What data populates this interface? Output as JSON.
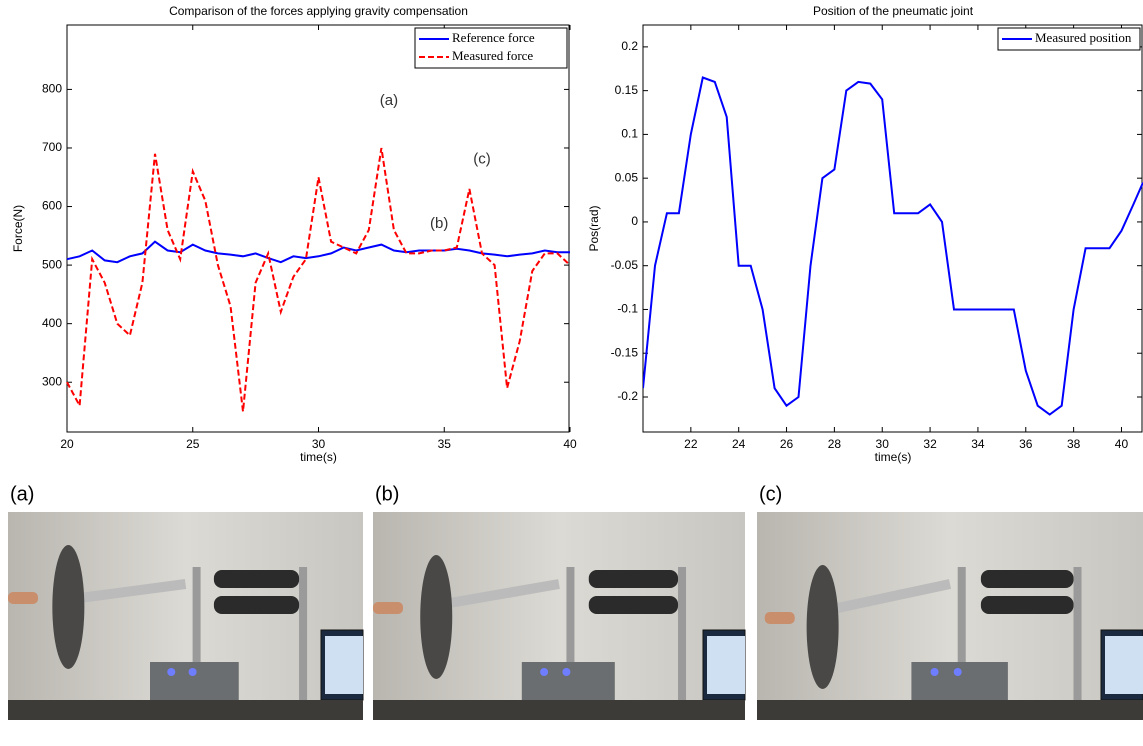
{
  "chart_data": [
    {
      "type": "line",
      "title": "Comparison of the forces applying gravity compensation",
      "xlabel": "time(s)",
      "ylabel": "Force(N)",
      "x": [
        20,
        20.5,
        21,
        21.5,
        22,
        22.5,
        23,
        23.5,
        24,
        24.5,
        25,
        25.5,
        26,
        26.5,
        27,
        27.5,
        28,
        28.5,
        29,
        29.5,
        30,
        30.5,
        31,
        31.5,
        32,
        32.5,
        33,
        33.5,
        34,
        34.5,
        35,
        35.5,
        36,
        36.5,
        37,
        37.5,
        38,
        38.5,
        39,
        39.5,
        40
      ],
      "series": [
        {
          "name": "Reference force",
          "color": "#0000ff",
          "linestyle": "solid",
          "values": [
            510,
            515,
            525,
            508,
            505,
            515,
            520,
            540,
            525,
            522,
            535,
            525,
            520,
            518,
            515,
            520,
            512,
            505,
            515,
            512,
            515,
            520,
            530,
            525,
            530,
            535,
            525,
            522,
            525,
            525,
            525,
            528,
            525,
            520,
            518,
            515,
            518,
            520,
            525,
            522,
            522
          ]
        },
        {
          "name": "Measured force",
          "color": "#ff0000",
          "linestyle": "dashed",
          "values": [
            300,
            260,
            510,
            470,
            400,
            380,
            470,
            690,
            560,
            510,
            660,
            610,
            500,
            430,
            250,
            470,
            520,
            420,
            480,
            510,
            650,
            540,
            530,
            520,
            560,
            700,
            560,
            520,
            520,
            525,
            525,
            530,
            630,
            520,
            500,
            290,
            370,
            490,
            520,
            520,
            500
          ]
        }
      ],
      "xlim": [
        20,
        40
      ],
      "xticks": [
        20,
        25,
        30,
        35,
        40
      ],
      "ylim": [
        215,
        910
      ],
      "yticks": [
        300,
        400,
        500,
        600,
        700,
        800
      ],
      "legend": "upper right",
      "grid": false,
      "annotations": [
        "(a)",
        "(b)",
        "(c)"
      ]
    },
    {
      "type": "line",
      "title": "Position of the pneumatic joint",
      "xlabel": "time(s)",
      "ylabel": "Pos(rad)",
      "x": [
        20,
        20.5,
        21,
        21.5,
        22,
        22.5,
        23,
        23.5,
        24,
        24.5,
        25,
        25.5,
        26,
        26.5,
        27,
        27.5,
        28,
        28.5,
        29,
        29.5,
        30,
        30.5,
        31,
        31.5,
        32,
        32.5,
        33,
        33.5,
        34,
        34.5,
        35,
        35.5,
        36,
        36.5,
        37,
        37.5,
        38,
        38.5,
        39,
        39.5,
        40,
        40.5,
        40.9
      ],
      "series": [
        {
          "name": "Measured position",
          "color": "#0000ff",
          "linestyle": "solid",
          "values": [
            -0.19,
            -0.05,
            0.01,
            0.01,
            0.1,
            0.165,
            0.16,
            0.12,
            -0.05,
            -0.05,
            -0.1,
            -0.19,
            -0.21,
            -0.2,
            -0.05,
            0.05,
            0.06,
            0.15,
            0.16,
            0.158,
            0.14,
            0.01,
            0.01,
            0.01,
            0.02,
            0,
            -0.1,
            -0.1,
            -0.1,
            -0.1,
            -0.1,
            -0.1,
            -0.17,
            -0.21,
            -0.22,
            -0.21,
            -0.1,
            -0.03,
            -0.03,
            -0.03,
            -0.01,
            0.02,
            0.045
          ]
        }
      ],
      "xlim": [
        20,
        40.9
      ],
      "xticks": [
        22,
        24,
        26,
        28,
        30,
        32,
        34,
        36,
        38,
        40
      ],
      "ylim": [
        -0.24,
        0.225
      ],
      "yticks": [
        -0.2,
        -0.15,
        -0.1,
        -0.05,
        0,
        0.05,
        0.1,
        0.15,
        0.2
      ],
      "legend": "upper right",
      "grid": false
    }
  ],
  "photos": [
    {
      "label": "(a)"
    },
    {
      "label": "(b)"
    },
    {
      "label": "(c)"
    }
  ]
}
